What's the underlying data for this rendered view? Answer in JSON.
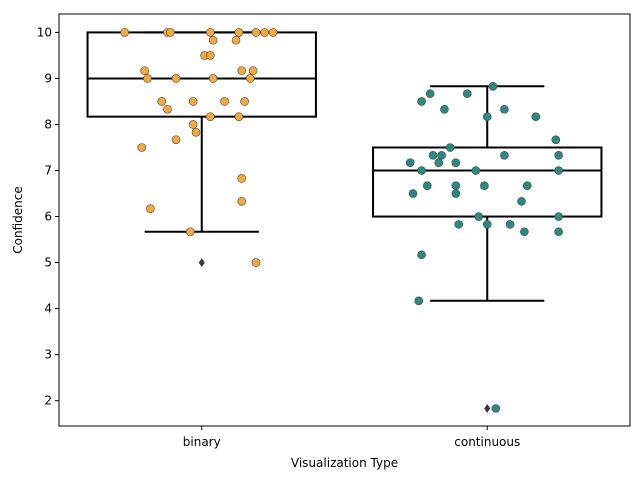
{
  "chart_data": {
    "type": "box",
    "xlabel": "Visualization Type",
    "ylabel": "Confidence",
    "categories": [
      "binary",
      "continuous"
    ],
    "ylim": [
      1.45,
      10.4
    ],
    "yticks": [
      2,
      3,
      4,
      5,
      6,
      7,
      8,
      9,
      10
    ],
    "grid": false,
    "boxes": [
      {
        "category": "binary",
        "q1": 8.17,
        "median": 9.0,
        "q3": 10.0,
        "whisker_low": 5.67,
        "whisker_high": 10.0,
        "outliers": [
          5.0
        ],
        "point_color": "#f5a93b",
        "points": [
          {
            "x": -0.27,
            "y": 10.0
          },
          {
            "x": -0.12,
            "y": 10.0
          },
          {
            "x": -0.11,
            "y": 10.0
          },
          {
            "x": 0.03,
            "y": 10.0
          },
          {
            "x": 0.13,
            "y": 10.0
          },
          {
            "x": 0.19,
            "y": 10.0
          },
          {
            "x": 0.22,
            "y": 10.0
          },
          {
            "x": 0.25,
            "y": 10.0
          },
          {
            "x": 0.04,
            "y": 9.83
          },
          {
            "x": 0.12,
            "y": 9.83
          },
          {
            "x": 0.01,
            "y": 9.5
          },
          {
            "x": 0.03,
            "y": 9.5
          },
          {
            "x": -0.2,
            "y": 9.17
          },
          {
            "x": 0.14,
            "y": 9.17
          },
          {
            "x": 0.18,
            "y": 9.17
          },
          {
            "x": -0.19,
            "y": 9.0
          },
          {
            "x": -0.09,
            "y": 9.0
          },
          {
            "x": 0.04,
            "y": 9.0
          },
          {
            "x": 0.17,
            "y": 9.0
          },
          {
            "x": -0.14,
            "y": 8.5
          },
          {
            "x": -0.03,
            "y": 8.5
          },
          {
            "x": 0.08,
            "y": 8.5
          },
          {
            "x": 0.15,
            "y": 8.5
          },
          {
            "x": -0.12,
            "y": 8.33
          },
          {
            "x": 0.03,
            "y": 8.17
          },
          {
            "x": 0.13,
            "y": 8.17
          },
          {
            "x": -0.03,
            "y": 8.0
          },
          {
            "x": -0.02,
            "y": 7.83
          },
          {
            "x": -0.09,
            "y": 7.67
          },
          {
            "x": -0.21,
            "y": 7.5
          },
          {
            "x": 0.14,
            "y": 6.83
          },
          {
            "x": 0.14,
            "y": 6.33
          },
          {
            "x": -0.18,
            "y": 6.17
          },
          {
            "x": -0.04,
            "y": 5.67
          },
          {
            "x": 0.19,
            "y": 5.0
          }
        ]
      },
      {
        "category": "continuous",
        "q1": 6.0,
        "median": 7.0,
        "q3": 7.5,
        "whisker_low": 4.17,
        "whisker_high": 8.83,
        "outliers": [
          1.83
        ],
        "point_color": "#2a8a83",
        "points": [
          {
            "x": 0.02,
            "y": 8.83
          },
          {
            "x": -0.2,
            "y": 8.67
          },
          {
            "x": -0.07,
            "y": 8.67
          },
          {
            "x": -0.23,
            "y": 8.5
          },
          {
            "x": -0.15,
            "y": 8.33
          },
          {
            "x": 0.06,
            "y": 8.33
          },
          {
            "x": 0.0,
            "y": 8.17
          },
          {
            "x": 0.17,
            "y": 8.17
          },
          {
            "x": 0.24,
            "y": 7.67
          },
          {
            "x": -0.13,
            "y": 7.5
          },
          {
            "x": -0.19,
            "y": 7.33
          },
          {
            "x": -0.16,
            "y": 7.33
          },
          {
            "x": 0.06,
            "y": 7.33
          },
          {
            "x": 0.25,
            "y": 7.33
          },
          {
            "x": -0.27,
            "y": 7.17
          },
          {
            "x": -0.17,
            "y": 7.17
          },
          {
            "x": -0.11,
            "y": 7.17
          },
          {
            "x": -0.23,
            "y": 7.0
          },
          {
            "x": -0.04,
            "y": 7.0
          },
          {
            "x": 0.25,
            "y": 7.0
          },
          {
            "x": -0.21,
            "y": 6.67
          },
          {
            "x": -0.11,
            "y": 6.67
          },
          {
            "x": -0.01,
            "y": 6.67
          },
          {
            "x": 0.14,
            "y": 6.67
          },
          {
            "x": -0.26,
            "y": 6.5
          },
          {
            "x": -0.11,
            "y": 6.5
          },
          {
            "x": 0.12,
            "y": 6.33
          },
          {
            "x": -0.03,
            "y": 6.0
          },
          {
            "x": 0.25,
            "y": 6.0
          },
          {
            "x": -0.1,
            "y": 5.83
          },
          {
            "x": 0.0,
            "y": 5.83
          },
          {
            "x": 0.08,
            "y": 5.83
          },
          {
            "x": 0.13,
            "y": 5.67
          },
          {
            "x": 0.25,
            "y": 5.67
          },
          {
            "x": -0.23,
            "y": 5.17
          },
          {
            "x": -0.24,
            "y": 4.17
          },
          {
            "x": 0.03,
            "y": 1.83
          }
        ]
      }
    ]
  }
}
